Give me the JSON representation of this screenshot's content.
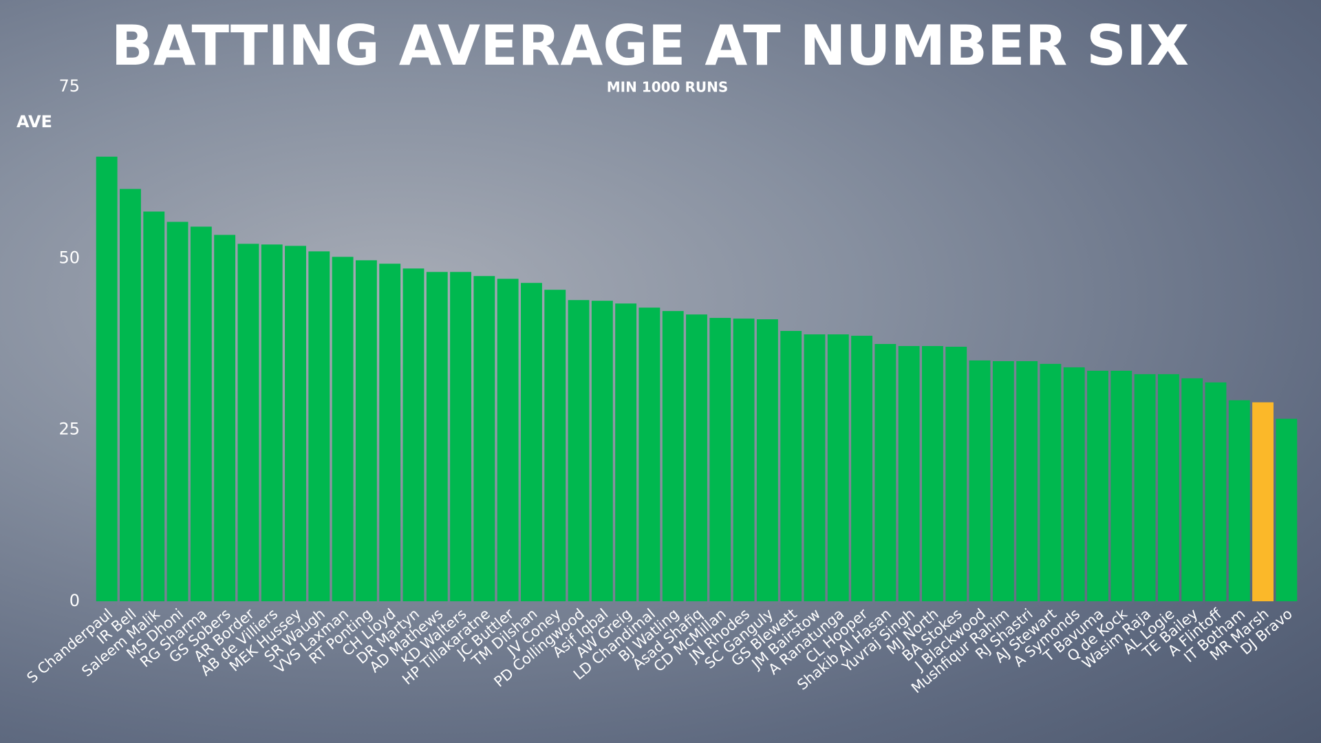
{
  "chart_data": {
    "type": "bar",
    "title": "BATTING AVERAGE AT NUMBER SIX",
    "subtitle": "MIN 1000 RUNS",
    "y_label": "AVE",
    "categories": [
      "S Chanderpaul",
      "IR Bell",
      "Saleem Malik",
      "MS Dhoni",
      "RG Sharma",
      "GS Sobers",
      "AR Border",
      "AB de Villiers",
      "MEK Hussey",
      "SR Waugh",
      "VVS Laxman",
      "RT Ponting",
      "CH Lloyd",
      "DR Martyn",
      "AD Mathews",
      "KD Walters",
      "HP Tillakaratne",
      "JC Buttler",
      "TM Dilshan",
      "JV Coney",
      "PD Collingwood",
      "Asif Iqbal",
      "AW Greig",
      "LD Chandimal",
      "BJ Watling",
      "Asad Shafiq",
      "CD McMillan",
      "JN Rhodes",
      "SC Ganguly",
      "GS Blewett",
      "JM Bairstow",
      "A Ranatunga",
      "CL Hooper",
      "Shakib Al Hasan",
      "Yuvraj Singh",
      "MJ North",
      "BA Stokes",
      "J Blackwood",
      "Mushfiqur Rahim",
      "RJ Shastri",
      "AJ Stewart",
      "A Symonds",
      "T Bavuma",
      "Q de Kock",
      "Wasim Raja",
      "AL Logie",
      "TE Bailey",
      "A Flintoff",
      "IT Botham",
      "MR Marsh",
      "DJ Bravo"
    ],
    "values": [
      64.8,
      60.1,
      56.8,
      55.3,
      54.6,
      53.4,
      52.1,
      52.0,
      51.8,
      51.0,
      50.2,
      49.7,
      49.2,
      48.5,
      48.0,
      48.0,
      47.4,
      47.0,
      46.4,
      45.4,
      43.9,
      43.8,
      43.4,
      42.8,
      42.3,
      41.8,
      41.3,
      41.2,
      41.1,
      39.4,
      38.9,
      38.9,
      38.7,
      37.5,
      37.2,
      37.2,
      37.1,
      35.1,
      35.0,
      35.0,
      34.6,
      34.1,
      33.6,
      33.6,
      33.1,
      33.1,
      32.5,
      31.9,
      29.3,
      29.0,
      26.6
    ],
    "colors": [
      "#00b84f",
      "#00b84f",
      "#00b84f",
      "#00b84f",
      "#00b84f",
      "#00b84f",
      "#00b84f",
      "#00b84f",
      "#00b84f",
      "#00b84f",
      "#00b84f",
      "#00b84f",
      "#00b84f",
      "#00b84f",
      "#00b84f",
      "#00b84f",
      "#00b84f",
      "#00b84f",
      "#00b84f",
      "#00b84f",
      "#00b84f",
      "#00b84f",
      "#00b84f",
      "#00b84f",
      "#00b84f",
      "#00b84f",
      "#00b84f",
      "#00b84f",
      "#00b84f",
      "#00b84f",
      "#00b84f",
      "#00b84f",
      "#00b84f",
      "#00b84f",
      "#00b84f",
      "#00b84f",
      "#00b84f",
      "#00b84f",
      "#00b84f",
      "#00b84f",
      "#00b84f",
      "#00b84f",
      "#00b84f",
      "#00b84f",
      "#00b84f",
      "#00b84f",
      "#00b84f",
      "#00b84f",
      "#00b84f",
      "#fbb829",
      "#00b84f"
    ],
    "ylim": [
      0,
      75
    ],
    "yticks": [
      0,
      25,
      50,
      75
    ],
    "grid": false
  }
}
